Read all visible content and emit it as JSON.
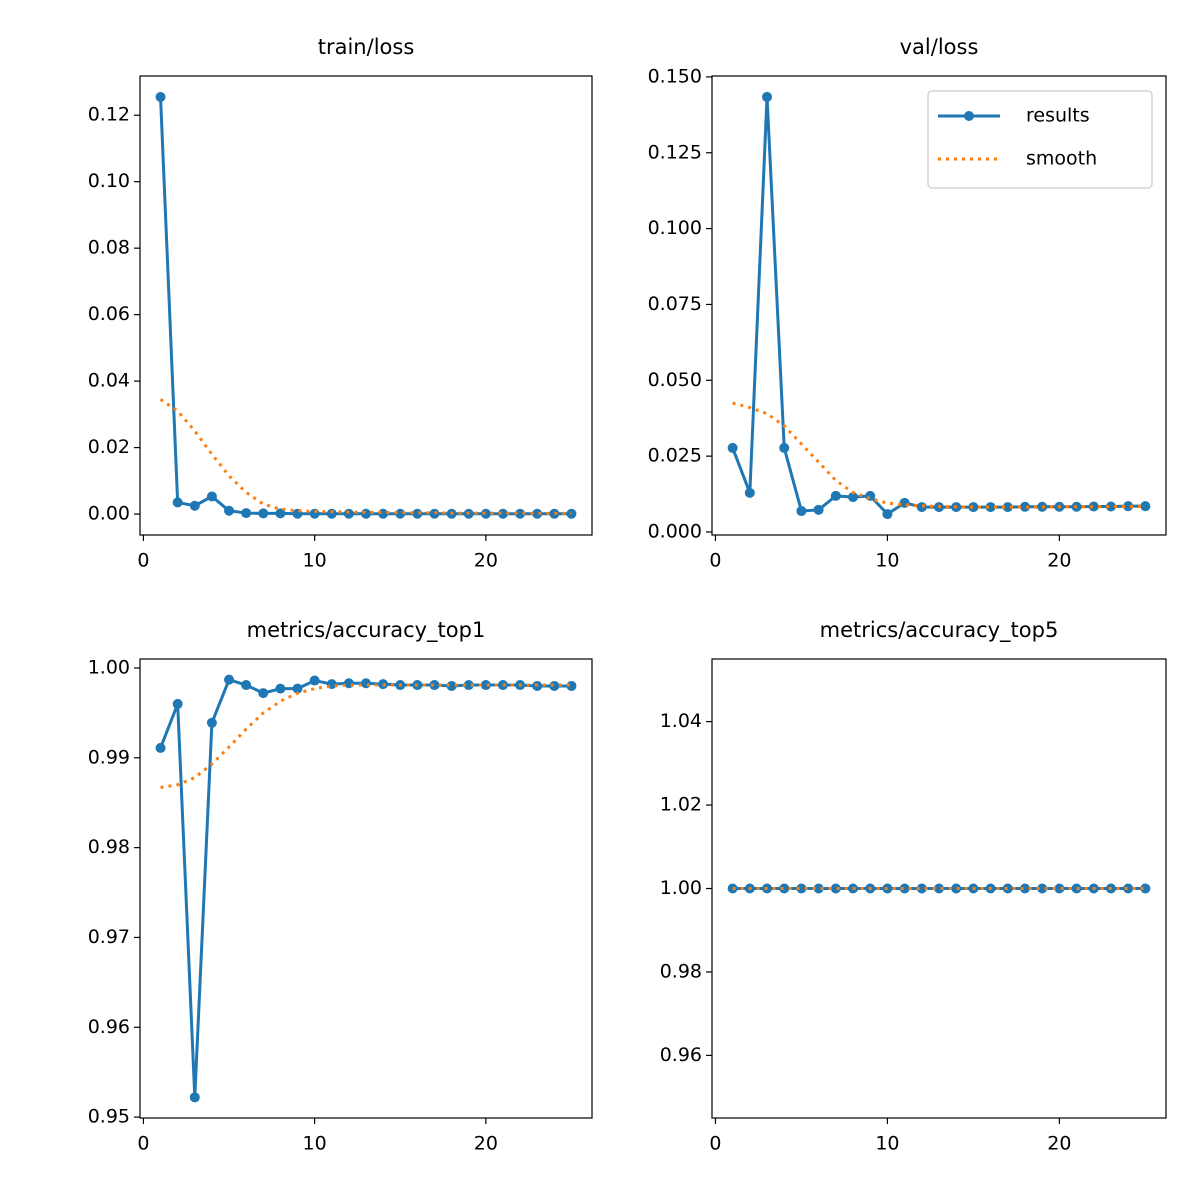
{
  "chart_data": [
    {
      "type": "line",
      "title": "train/loss",
      "x": [
        1,
        2,
        3,
        4,
        5,
        6,
        7,
        8,
        9,
        10,
        11,
        12,
        13,
        14,
        15,
        16,
        17,
        18,
        19,
        20,
        21,
        22,
        23,
        24,
        25
      ],
      "series": [
        {
          "color": "#1f77b4",
          "linestyle": "solid",
          "marker": true,
          "values": [
            0.1255,
            0.0035,
            0.0025,
            0.0053,
            0.001,
            0.0003,
            0.0002,
            0.0002,
            0.0001,
            0.0001,
            0.0001,
            0.0001,
            0.0001,
            0.0001,
            0.0001,
            0.0001,
            0.0001,
            0.0001,
            0.0001,
            0.0001,
            0.0001,
            0.0001,
            0.0001,
            0.0001,
            0.0001
          ]
        },
        {
          "color": "#ff7f0e",
          "linestyle": "dotted",
          "marker": false,
          "values": [
            0.0345,
            0.031,
            0.025,
            0.018,
            0.0115,
            0.0065,
            0.003,
            0.0015,
            0.001,
            0.0008,
            0.0007,
            0.0006,
            0.0005,
            0.0005,
            0.0004,
            0.0004,
            0.0004,
            0.0003,
            0.0003,
            0.0003,
            0.0003,
            0.0003,
            0.0002,
            0.0002,
            0.0002
          ]
        }
      ],
      "xlim": [
        -0.2,
        26.2
      ],
      "xticks": [
        0,
        10,
        20
      ],
      "ylim": [
        -0.0063,
        0.1318
      ],
      "yticks": [
        {
          "value": 0,
          "label": "0.00"
        },
        {
          "value": 0.02,
          "label": "0.02"
        },
        {
          "value": 0.04,
          "label": "0.04"
        },
        {
          "value": 0.06,
          "label": "0.06"
        },
        {
          "value": 0.08,
          "label": "0.08"
        },
        {
          "value": 0.1,
          "label": "0.10"
        },
        0.12
      ]
    },
    {
      "type": "line",
      "title": "val/loss",
      "x": [
        1,
        2,
        3,
        4,
        5,
        6,
        7,
        8,
        9,
        10,
        11,
        12,
        13,
        14,
        15,
        16,
        17,
        18,
        19,
        20,
        21,
        22,
        23,
        24,
        25
      ],
      "series": [
        {
          "name": "results",
          "color": "#1f77b4",
          "linestyle": "solid",
          "marker": true,
          "values": [
            0.0277,
            0.0129,
            0.1434,
            0.0277,
            0.0069,
            0.0073,
            0.0119,
            0.0115,
            0.0119,
            0.0059,
            0.0096,
            0.0082,
            0.0082,
            0.0082,
            0.0082,
            0.0082,
            0.0082,
            0.0083,
            0.0083,
            0.0083,
            0.0083,
            0.0084,
            0.0084,
            0.0085,
            0.0085
          ]
        },
        {
          "name": "smooth",
          "color": "#ff7f0e",
          "linestyle": "dotted",
          "marker": false,
          "values": [
            0.0425,
            0.041,
            0.039,
            0.035,
            0.029,
            0.023,
            0.017,
            0.013,
            0.011,
            0.0095,
            0.009,
            0.0086,
            0.0084,
            0.0083,
            0.0082,
            0.0082,
            0.0082,
            0.0082,
            0.0082,
            0.0083,
            0.0083,
            0.0083,
            0.0084,
            0.0084,
            0.0084
          ]
        }
      ],
      "xlim": [
        -0.2,
        26.2
      ],
      "xticks": [
        0,
        10,
        20
      ],
      "ylim": [
        -0.001,
        0.1503
      ],
      "yticks": [
        {
          "value": 0,
          "label": "0.000"
        },
        0.025,
        {
          "value": 0.05,
          "label": "0.050"
        },
        0.075,
        {
          "value": 0.1,
          "label": "0.100"
        },
        0.125,
        {
          "value": 0.15,
          "label": "0.150"
        }
      ],
      "legend": "upper right"
    },
    {
      "type": "line",
      "title": "metrics/accuracy_top1",
      "x": [
        1,
        2,
        3,
        4,
        5,
        6,
        7,
        8,
        9,
        10,
        11,
        12,
        13,
        14,
        15,
        16,
        17,
        18,
        19,
        20,
        21,
        22,
        23,
        24,
        25
      ],
      "series": [
        {
          "color": "#1f77b4",
          "linestyle": "solid",
          "marker": true,
          "values": [
            0.9911,
            0.996,
            0.9522,
            0.9939,
            0.9987,
            0.9981,
            0.9972,
            0.9977,
            0.9977,
            0.9986,
            0.9982,
            0.9983,
            0.9983,
            0.9982,
            0.9981,
            0.9981,
            0.9981,
            0.998,
            0.9981,
            0.9981,
            0.9981,
            0.9981,
            0.998,
            0.998,
            0.998
          ]
        },
        {
          "color": "#ff7f0e",
          "linestyle": "dotted",
          "marker": false,
          "values": [
            0.9867,
            0.987,
            0.9878,
            0.9893,
            0.9912,
            0.9932,
            0.995,
            0.9963,
            0.9972,
            0.9977,
            0.998,
            0.9981,
            0.9981,
            0.9981,
            0.9981,
            0.9981,
            0.9981,
            0.9981,
            0.9981,
            0.9981,
            0.9981,
            0.9981,
            0.9981,
            0.9981,
            0.9981
          ]
        }
      ],
      "xlim": [
        -0.2,
        26.2
      ],
      "xticks": [
        0,
        10,
        20
      ],
      "ylim": [
        0.9499,
        1.001
      ],
      "yticks": [
        0.95,
        0.96,
        0.97,
        0.98,
        0.99,
        {
          "value": 1,
          "label": "1.00"
        }
      ]
    },
    {
      "type": "line",
      "title": "metrics/accuracy_top5",
      "x": [
        1,
        2,
        3,
        4,
        5,
        6,
        7,
        8,
        9,
        10,
        11,
        12,
        13,
        14,
        15,
        16,
        17,
        18,
        19,
        20,
        21,
        22,
        23,
        24,
        25
      ],
      "series": [
        {
          "color": "#1f77b4",
          "linestyle": "solid",
          "marker": true,
          "values": [
            1,
            1,
            1,
            1,
            1,
            1,
            1,
            1,
            1,
            1,
            1,
            1,
            1,
            1,
            1,
            1,
            1,
            1,
            1,
            1,
            1,
            1,
            1,
            1,
            1
          ]
        },
        {
          "color": "#ff7f0e",
          "linestyle": "dotted",
          "marker": false,
          "values": [
            1,
            1,
            1,
            1,
            1,
            1,
            1,
            1,
            1,
            1,
            1,
            1,
            1,
            1,
            1,
            1,
            1,
            1,
            1,
            1,
            1,
            1,
            1,
            1,
            1
          ]
        }
      ],
      "xlim": [
        -0.2,
        26.2
      ],
      "xticks": [
        0,
        10,
        20
      ],
      "ylim": [
        0.945,
        1.055
      ],
      "yticks": [
        0.96,
        0.98,
        {
          "value": 1,
          "label": "1.00"
        },
        1.02,
        1.04
      ]
    }
  ]
}
